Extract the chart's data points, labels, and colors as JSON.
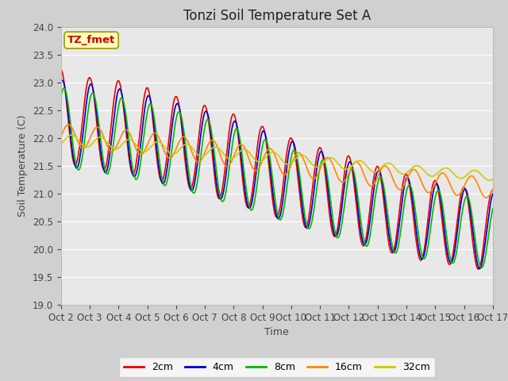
{
  "title": "Tonzi Soil Temperature Set A",
  "xlabel": "Time",
  "ylabel": "Soil Temperature (C)",
  "ylim": [
    19.0,
    24.0
  ],
  "yticks": [
    19.0,
    19.5,
    20.0,
    20.5,
    21.0,
    21.5,
    22.0,
    22.5,
    23.0,
    23.5,
    24.0
  ],
  "xtick_labels": [
    "Oct 2",
    "Oct 3",
    "Oct 4",
    "Oct 5",
    "Oct 6",
    "Oct 7",
    "Oct 8",
    "Oct 9",
    "Oct 10",
    "Oct 11",
    "Oct 12",
    "Oct 13",
    "Oct 14",
    "Oct 15",
    "Oct 16",
    "Oct 17"
  ],
  "n_points": 720,
  "line_colors": [
    "#ee0000",
    "#0000cc",
    "#00bb00",
    "#ff8800",
    "#cccc00"
  ],
  "line_labels": [
    "2cm",
    "4cm",
    "8cm",
    "16cm",
    "32cm"
  ],
  "line_widths": [
    1.2,
    1.2,
    1.2,
    1.2,
    1.2
  ],
  "fig_bg_color": "#d0d0d0",
  "plot_bg_color": "#e8e8e8",
  "annotation_text": "TZ_fmet",
  "annotation_bg": "#ffffbb",
  "annotation_border": "#999900",
  "title_fontsize": 12,
  "axis_label_fontsize": 9,
  "tick_fontsize": 8.5
}
